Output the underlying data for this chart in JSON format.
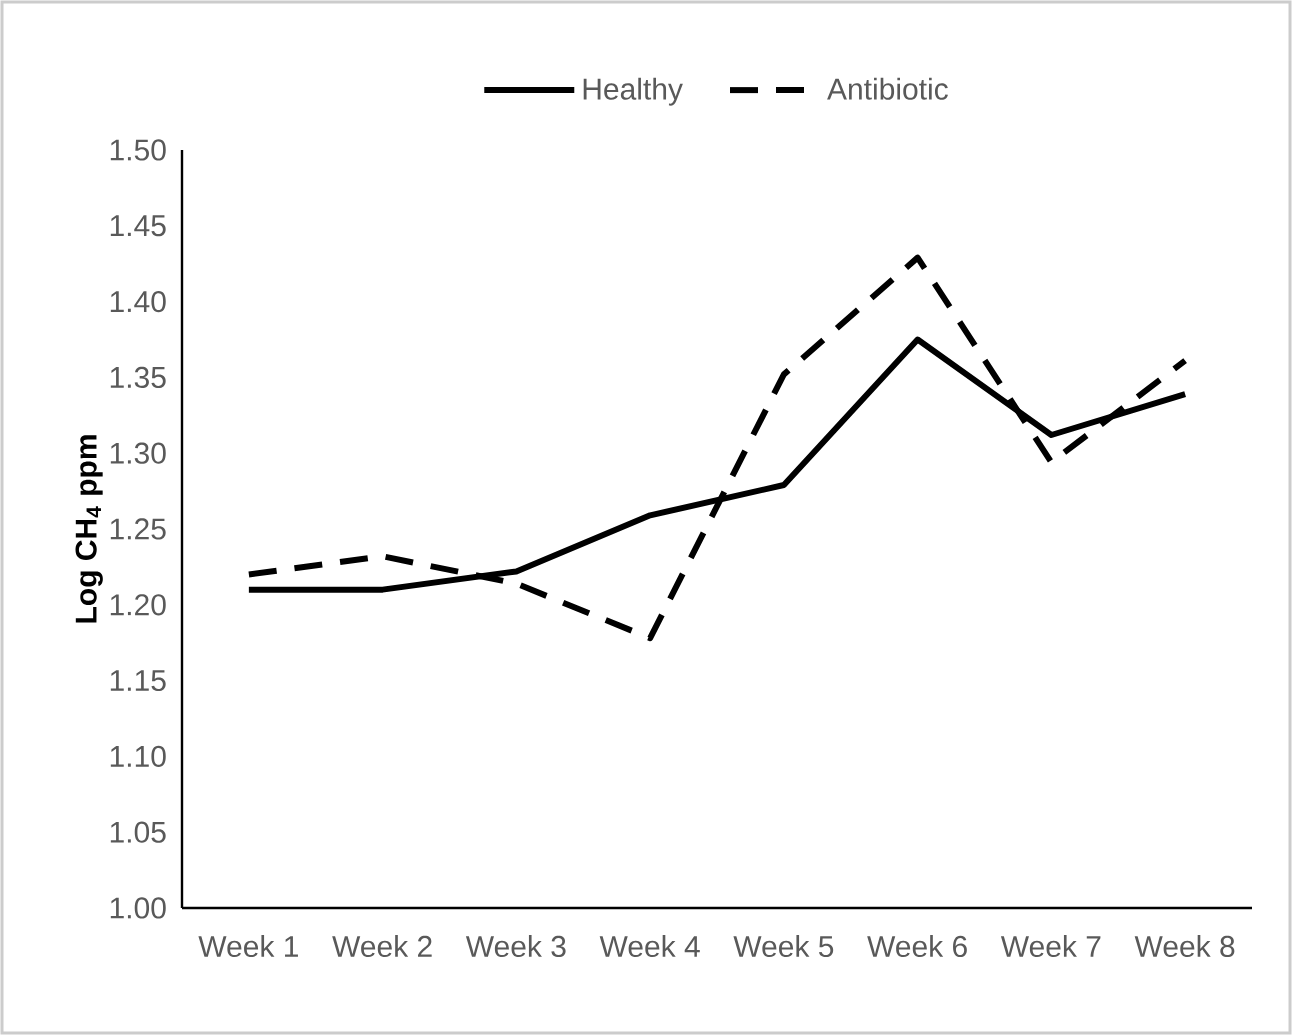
{
  "chart_data": {
    "type": "line",
    "ylabel": "Log CH$_{4}$ ppm",
    "categories": [
      "Week 1",
      "Week 2",
      "Week 3",
      "Week 4",
      "Week 5",
      "Week 6",
      "Week 7",
      "Week 8"
    ],
    "series": [
      {
        "name": "Healthy",
        "color": "#000000",
        "line_style": "solid",
        "values": [
          1.21,
          1.21,
          1.222,
          1.259,
          1.279,
          1.375,
          1.312,
          1.339
        ]
      },
      {
        "name": "Antibiotic",
        "color": "#000000",
        "line_style": "dashed",
        "values": [
          1.22,
          1.232,
          1.214,
          1.178,
          1.352,
          1.429,
          1.294,
          1.361
        ]
      }
    ],
    "ylim": [
      1.0,
      1.5
    ],
    "yticks": [
      {
        "value": 1.0,
        "label": "1.00"
      },
      {
        "value": 1.05,
        "label": "1.05"
      },
      {
        "value": 1.1,
        "label": "1.10"
      },
      {
        "value": 1.15,
        "label": "1.15"
      },
      {
        "value": 1.2,
        "label": "1.20"
      },
      {
        "value": 1.25,
        "label": "1.25"
      },
      {
        "value": 1.3,
        "label": "1.30"
      },
      {
        "value": 1.35,
        "label": "1.35"
      },
      {
        "value": 1.4,
        "label": "1.40"
      },
      {
        "value": 1.45,
        "label": "1.45"
      },
      {
        "value": 1.5,
        "label": "1.50"
      }
    ],
    "legend": "top"
  }
}
